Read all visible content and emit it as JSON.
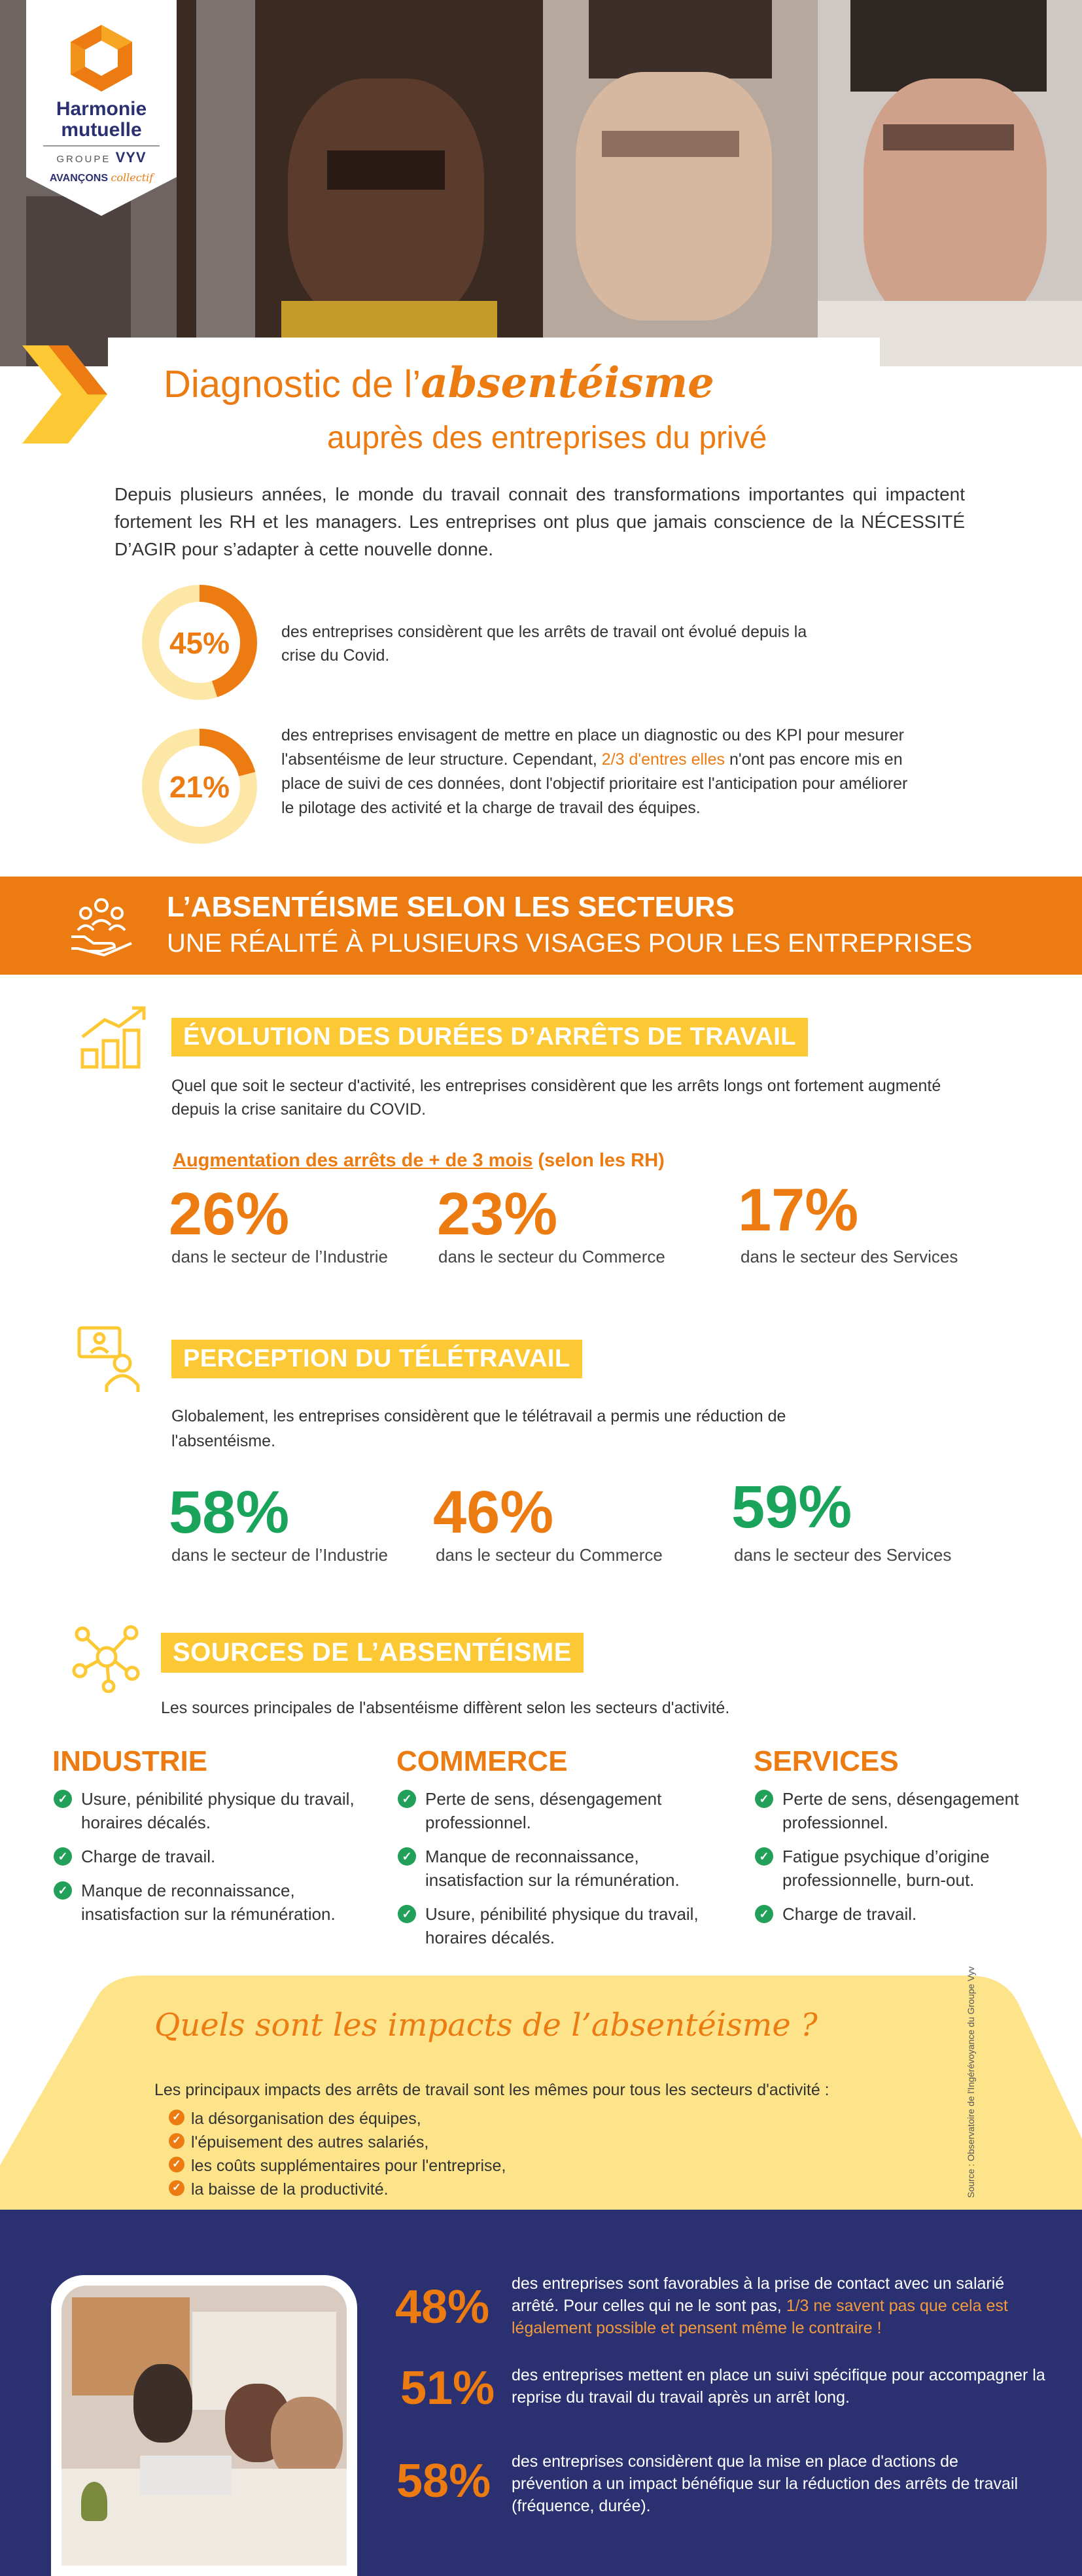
{
  "logo": {
    "line1": "Harmonie",
    "line2": "mutuelle",
    "group": "GROUPE",
    "vyv": "VYV",
    "tagline_a": "AVANÇONS",
    "tagline_b": "collectif"
  },
  "title": {
    "part1": "Diagnostic de l’",
    "part2": "absentéisme",
    "line2": "auprès des entreprises du privé"
  },
  "intro": "Depuis plusieurs années, le monde du travail connait des transformations importantes qui impactent fortement les RH et les managers. Les entreprises ont plus que jamais conscience de la NÉCESSITÉ D’AGIR pour s’adapter à cette nouvelle donne.",
  "stats_top": [
    {
      "value": "45%",
      "fraction": 0.45,
      "text": "des entreprises considèrent que les arrêts de travail ont évolué depuis la crise du Covid."
    },
    {
      "value": "21%",
      "fraction": 0.21,
      "text_a": "des entreprises envisagent de mettre en place un diagnostic ou des KPI pour mesurer l'absentéisme de leur structure. Cependant, ",
      "text_hl": "2/3 d'entres elles",
      "text_b": " n'ont pas encore mis en place de suivi de ces données, dont l'objectif prioritaire est l'anticipation pour améliorer le pilotage des activité et la charge de travail des équipes."
    }
  ],
  "banner": {
    "line1": "L’ABSENTÉISME SELON LES SECTEURS",
    "line2": "UNE RÉALITÉ À PLUSIEURS VISAGES POUR LES ENTREPRISES"
  },
  "evolution": {
    "title": "ÉVOLUTION DES DURÉES D’ARRÊTS DE TRAVAIL",
    "text": "Quel que soit le secteur d'activité, les entreprises considèrent que les arrêts longs ont fortement augmenté depuis la crise sanitaire du COVID.",
    "subtitle_a": "Augmentation des arrêts de + de 3 mois",
    "subtitle_b": " (selon les RH)",
    "items": [
      {
        "value": "26%",
        "label": "dans le secteur de l’Industrie"
      },
      {
        "value": "23%",
        "label": "dans le secteur du Commerce"
      },
      {
        "value": "17%",
        "label": "dans le secteur des Services"
      }
    ]
  },
  "teletravail": {
    "title": "PERCEPTION DU TÉLÉTRAVAIL",
    "text": "Globalement, les entreprises considèrent que le télétravail a permis une réduction de l'absentéisme.",
    "items": [
      {
        "value": "58%",
        "label": "dans le secteur de l’Industrie"
      },
      {
        "value": "46%",
        "label": "dans le secteur du Commerce"
      },
      {
        "value": "59%",
        "label": "dans le secteur des Services"
      }
    ]
  },
  "sources": {
    "title": "SOURCES DE L’ABSENTÉISME",
    "text": "Les sources principales de l'absentéisme diffèrent selon les secteurs d'activité.",
    "columns": [
      {
        "title": "INDUSTRIE",
        "items": [
          "Usure, pénibilité physique du travail, horaires décalés.",
          "Charge de travail.",
          "Manque de reconnaissance, insatisfaction sur la rémunération."
        ]
      },
      {
        "title": "COMMERCE",
        "items": [
          "Perte de sens, désengagement professionnel.",
          "Manque de reconnaissance, insatisfaction sur la rémunération.",
          "Usure, pénibilité physique du travail, horaires décalés."
        ]
      },
      {
        "title": "SERVICES",
        "items": [
          "Perte de sens, désengagement professionnel.",
          "Fatigue psychique d’origine professionnelle, burn-out.",
          "Charge de travail."
        ]
      }
    ]
  },
  "impacts": {
    "title": "Quels sont les impacts de l’absentéisme ?",
    "text": "Les principaux impacts des arrêts de travail sont les mêmes pour tous les secteurs d'activité :",
    "items": [
      "la désorganisation des équipes,",
      "l'épuisement des autres salariés,",
      "les coûts supplémentaires pour l'entreprise,",
      "la baisse de la productivité."
    ]
  },
  "source_note": "Source : Observatoire de l'Ingérévoyance du Groupe Vyv",
  "bottom_stats": [
    {
      "value": "48%",
      "text_a": "des entreprises sont favorables à la prise de contact avec un salarié arrêté. Pour celles qui ne le sont pas, ",
      "text_hl": "1/3  ne savent pas que cela est légalement possible et pensent même le contraire !"
    },
    {
      "value": "51%",
      "text_a": "des entreprises mettent en place un suivi spécifique pour accompagner la reprise du travail du travail après un arrêt long.",
      "text_hl": ""
    },
    {
      "value": "58%",
      "text_a": "des entreprises considèrent que la mise en place d'actions de prévention a un impact bénéfique sur la réduction des arrêts de travail (fréquence, durée).",
      "text_hl": ""
    }
  ],
  "colors": {
    "orange": "#ec7b11",
    "yellow": "#fcc934",
    "navy": "#2b3071",
    "green": "#1aa35a"
  }
}
